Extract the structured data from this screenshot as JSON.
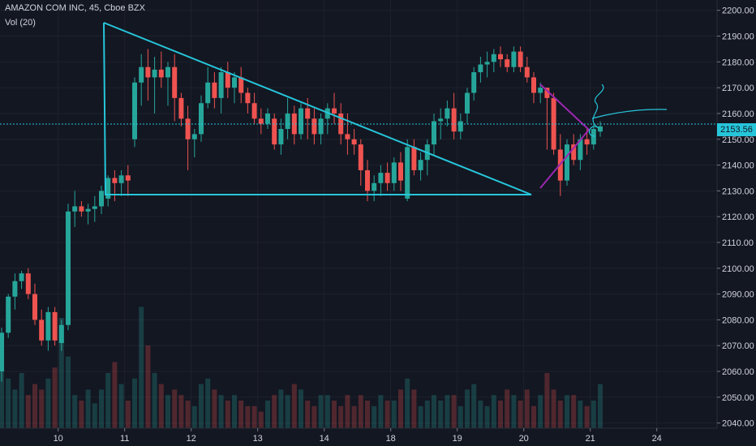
{
  "header": {
    "title": "AMAZON COM INC, 45, Cboe BZX",
    "volume_label": "Vol (20)"
  },
  "last_price_label": "2153.56",
  "colors": {
    "background": "#131722",
    "up": "#26a69a",
    "down": "#ef5350",
    "trendline": "#26c6da",
    "pennant": "#9c27b0",
    "text": "#d1d4dc",
    "grid": "#1e222d"
  },
  "chart_data": {
    "type": "candlestick",
    "title": "AMAZON COM INC, 45, Cboe BZX",
    "ylim": [
      2038,
      2204
    ],
    "y_ticks": [
      2040,
      2050,
      2060,
      2070,
      2080,
      2090,
      2100,
      2110,
      2120,
      2130,
      2140,
      2150,
      2160,
      2170,
      2180,
      2190,
      2200
    ],
    "y_tick_labels": [
      "2040.00",
      "2050.00",
      "2060.00",
      "2070.00",
      "2080.00",
      "2090.00",
      "2100.00",
      "2110.00",
      "2120.00",
      "2130.00",
      "2140.00",
      "2150.00",
      "2160.00",
      "2170.00",
      "2180.00",
      "2190.00",
      "2200.00"
    ],
    "x_ticks": [
      {
        "label": "10",
        "bar": 8.5
      },
      {
        "label": "11",
        "bar": 18.5
      },
      {
        "label": "12",
        "bar": 28.5
      },
      {
        "label": "13",
        "bar": 38.5
      },
      {
        "label": "14",
        "bar": 48.5
      },
      {
        "label": "18",
        "bar": 58.5
      },
      {
        "label": "19",
        "bar": 68.5
      },
      {
        "label": "20",
        "bar": 78.5
      },
      {
        "label": "21",
        "bar": 88.5
      },
      {
        "label": "24",
        "bar": 98.5
      }
    ],
    "grid": true,
    "last_price": 2153.56,
    "candles": [
      [
        2060,
        2077,
        2056,
        2075,
        24
      ],
      [
        2075,
        2090,
        2073,
        2089,
        18
      ],
      [
        2089,
        2098,
        2084,
        2095,
        14
      ],
      [
        2095,
        2099,
        2092,
        2098,
        20
      ],
      [
        2098,
        2100,
        2088,
        2090,
        12
      ],
      [
        2090,
        2094,
        2078,
        2080,
        16
      ],
      [
        2080,
        2084,
        2070,
        2072,
        14
      ],
      [
        2072,
        2085,
        2068,
        2083,
        18
      ],
      [
        2083,
        2085,
        2070,
        2072,
        22
      ],
      [
        2071,
        2080,
        2068,
        2078,
        40
      ],
      [
        2078,
        2125,
        2076,
        2122,
        26
      ],
      [
        2122,
        2130,
        2116,
        2124,
        12
      ],
      [
        2124,
        2126,
        2120,
        2122,
        10
      ],
      [
        2122,
        2125,
        2117,
        2123,
        14
      ],
      [
        2123,
        2128,
        2118,
        2124,
        9
      ],
      [
        2124,
        2132,
        2121,
        2130,
        14
      ],
      [
        2127,
        2136,
        2124,
        2135,
        20
      ],
      [
        2135,
        2138,
        2126,
        2133,
        24
      ],
      [
        2133,
        2138,
        2128,
        2136,
        16
      ],
      [
        2136,
        2140,
        2128,
        2134,
        10
      ],
      [
        2150,
        2174,
        2147,
        2172,
        18
      ],
      [
        2172,
        2183,
        2163,
        2178,
        44
      ],
      [
        2178,
        2185,
        2165,
        2174,
        30
      ],
      [
        2174,
        2182,
        2160,
        2177,
        20
      ],
      [
        2177,
        2184,
        2170,
        2174,
        16
      ],
      [
        2174,
        2180,
        2163,
        2178,
        12
      ],
      [
        2178,
        2183,
        2157,
        2166,
        14
      ],
      [
        2166,
        2168,
        2155,
        2158,
        12
      ],
      [
        2158,
        2163,
        2138,
        2150,
        10
      ],
      [
        2150,
        2154,
        2143,
        2152,
        8
      ],
      [
        2152,
        2167,
        2149,
        2164,
        16
      ],
      [
        2164,
        2178,
        2162,
        2172,
        18
      ],
      [
        2172,
        2176,
        2162,
        2166,
        14
      ],
      [
        2166,
        2178,
        2160,
        2176,
        12
      ],
      [
        2176,
        2180,
        2166,
        2170,
        10
      ],
      [
        2170,
        2176,
        2164,
        2174,
        12
      ],
      [
        2174,
        2178,
        2164,
        2168,
        10
      ],
      [
        2168,
        2170,
        2160,
        2164,
        8
      ],
      [
        2164,
        2168,
        2156,
        2158,
        8
      ],
      [
        2158,
        2162,
        2152,
        2156,
        6
      ],
      [
        2156,
        2162,
        2154,
        2160,
        10
      ],
      [
        2158,
        2160,
        2146,
        2148,
        12
      ],
      [
        2148,
        2158,
        2144,
        2154,
        14
      ],
      [
        2154,
        2166,
        2150,
        2160,
        12
      ],
      [
        2160,
        2163,
        2148,
        2152,
        16
      ],
      [
        2152,
        2164,
        2150,
        2162,
        14
      ],
      [
        2162,
        2166,
        2150,
        2158,
        10
      ],
      [
        2158,
        2162,
        2148,
        2152,
        8
      ],
      [
        2152,
        2160,
        2148,
        2158,
        12
      ],
      [
        2158,
        2164,
        2152,
        2162,
        12
      ],
      [
        2162,
        2168,
        2156,
        2160,
        10
      ],
      [
        2160,
        2164,
        2148,
        2152,
        8
      ],
      [
        2152,
        2160,
        2144,
        2150,
        12
      ],
      [
        2150,
        2154,
        2144,
        2148,
        8
      ],
      [
        2148,
        2150,
        2132,
        2138,
        12
      ],
      [
        2138,
        2142,
        2126,
        2130,
        10
      ],
      [
        2130,
        2136,
        2126,
        2133,
        8
      ],
      [
        2133,
        2140,
        2128,
        2137,
        12
      ],
      [
        2137,
        2141,
        2130,
        2133,
        10
      ],
      [
        2133,
        2143,
        2130,
        2141,
        10
      ],
      [
        2141,
        2145,
        2130,
        2134,
        14
      ],
      [
        2127,
        2150,
        2126,
        2147,
        18
      ],
      [
        2147,
        2150,
        2136,
        2138,
        14
      ],
      [
        2138,
        2145,
        2134,
        2142,
        8
      ],
      [
        2142,
        2150,
        2136,
        2148,
        10
      ],
      [
        2148,
        2160,
        2144,
        2157,
        12
      ],
      [
        2157,
        2162,
        2150,
        2158,
        10
      ],
      [
        2158,
        2165,
        2155,
        2162,
        12
      ],
      [
        2162,
        2168,
        2150,
        2153,
        12
      ],
      [
        2153,
        2160,
        2150,
        2157,
        8
      ],
      [
        2160,
        2170,
        2156,
        2168,
        14
      ],
      [
        2168,
        2178,
        2165,
        2176,
        16
      ],
      [
        2176,
        2182,
        2172,
        2179,
        10
      ],
      [
        2179,
        2184,
        2174,
        2180,
        8
      ],
      [
        2180,
        2185,
        2176,
        2183,
        12
      ],
      [
        2183,
        2186,
        2178,
        2181,
        10
      ],
      [
        2181,
        2183,
        2176,
        2178,
        14
      ],
      [
        2178,
        2186,
        2176,
        2184,
        12
      ],
      [
        2184,
        2186,
        2176,
        2178,
        10
      ],
      [
        2178,
        2182,
        2172,
        2174,
        14
      ],
      [
        2174,
        2176,
        2164,
        2168,
        8
      ],
      [
        2168,
        2172,
        2164,
        2170,
        12
      ],
      [
        2170,
        2170,
        2146,
        2166,
        20
      ],
      [
        2166,
        2168,
        2144,
        2146,
        14
      ],
      [
        2146,
        2152,
        2128,
        2134,
        10
      ],
      [
        2134,
        2150,
        2132,
        2148,
        12
      ],
      [
        2148,
        2152,
        2140,
        2142,
        12
      ],
      [
        2142,
        2152,
        2138,
        2150,
        10
      ],
      [
        2150,
        2154,
        2144,
        2148,
        8
      ],
      [
        2148,
        2156,
        2146,
        2154,
        10
      ],
      [
        2153,
        2157,
        2151,
        2155,
        16
      ]
    ]
  }
}
